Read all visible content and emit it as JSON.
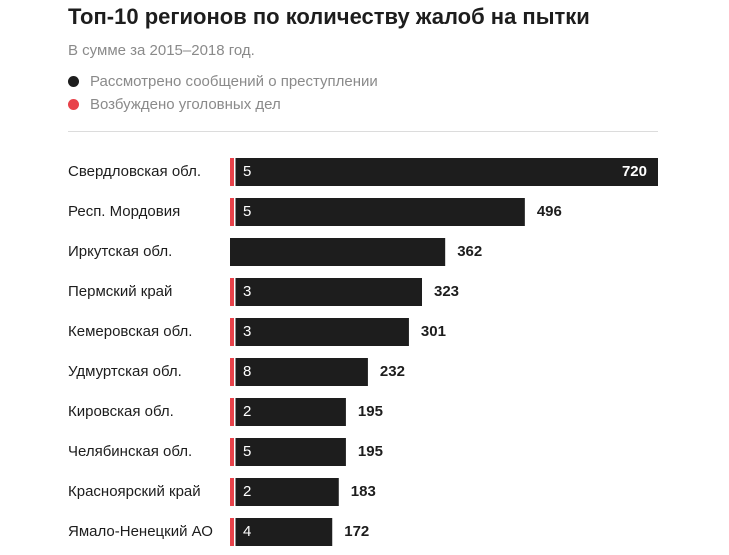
{
  "chart_data": {
    "type": "bar",
    "title": "Топ-10 регионов по количеству жалоб на пытки",
    "subtitle": "В сумме за 2015–2018 год.",
    "categories": [
      "Свердловская обл.",
      "Респ. Мордовия",
      "Иркутская обл.",
      "Пермский край",
      "Кемеровская обл.",
      "Удмуртская обл.",
      "Кировская обл.",
      "Челябинская обл.",
      "Красноярский край",
      "Ямало-Ненецкий АО"
    ],
    "series": [
      {
        "name": "Рассмотрено сообщений о преступлении",
        "color": "#1d1d1d",
        "values": [
          720,
          496,
          362,
          323,
          301,
          232,
          195,
          195,
          183,
          172
        ]
      },
      {
        "name": "Возбуждено уголовных дел",
        "color": "#e8424a",
        "values": [
          5,
          5,
          0,
          3,
          3,
          8,
          2,
          5,
          2,
          4
        ]
      }
    ],
    "xlim": [
      0,
      720
    ],
    "grid": false,
    "legend_position": "top-left"
  }
}
